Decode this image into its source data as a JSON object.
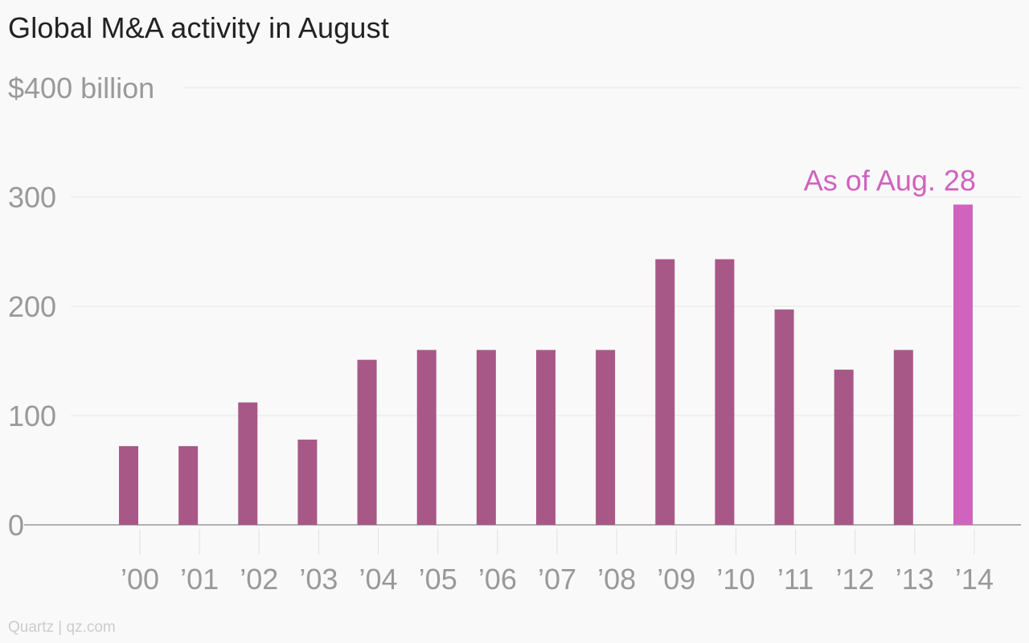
{
  "chart_data": {
    "type": "bar",
    "title": "Global M&A activity in August",
    "y_unit_label": "$400 billion",
    "y_ticks": [
      {
        "value": 0,
        "label": "0"
      },
      {
        "value": 100,
        "label": "100"
      },
      {
        "value": 200,
        "label": "200"
      },
      {
        "value": 300,
        "label": "300"
      },
      {
        "value": 400,
        "label": "$400 billion"
      }
    ],
    "ylim": [
      0,
      400
    ],
    "grid": true,
    "categories": [
      " 00",
      " 01",
      " 02",
      " 03",
      " 04",
      " 05",
      " 06",
      " 07",
      " 08",
      " 09",
      " 10",
      " 11",
      " 12",
      " 13",
      " 14"
    ],
    "category_labels": [
      "’00",
      "’01",
      "’02",
      "’03",
      "’04",
      "’05",
      "’06",
      "’07",
      "’08",
      "’09",
      "’10",
      "’11",
      "’12",
      "’13",
      "’14"
    ],
    "values": [
      72,
      72,
      112,
      78,
      151,
      160,
      160,
      160,
      160,
      243,
      243,
      197,
      142,
      160,
      293
    ],
    "highlight_index": 14,
    "annotation": {
      "text": "As of Aug. 28",
      "index": 14
    },
    "colors": {
      "bar": "#a85887",
      "highlight": "#d063bd",
      "annotation": "#d063bd",
      "grid": "#e6e6e6",
      "axis": "#999999",
      "tick_label": "#999999"
    }
  },
  "source": "Quartz | qz.com"
}
